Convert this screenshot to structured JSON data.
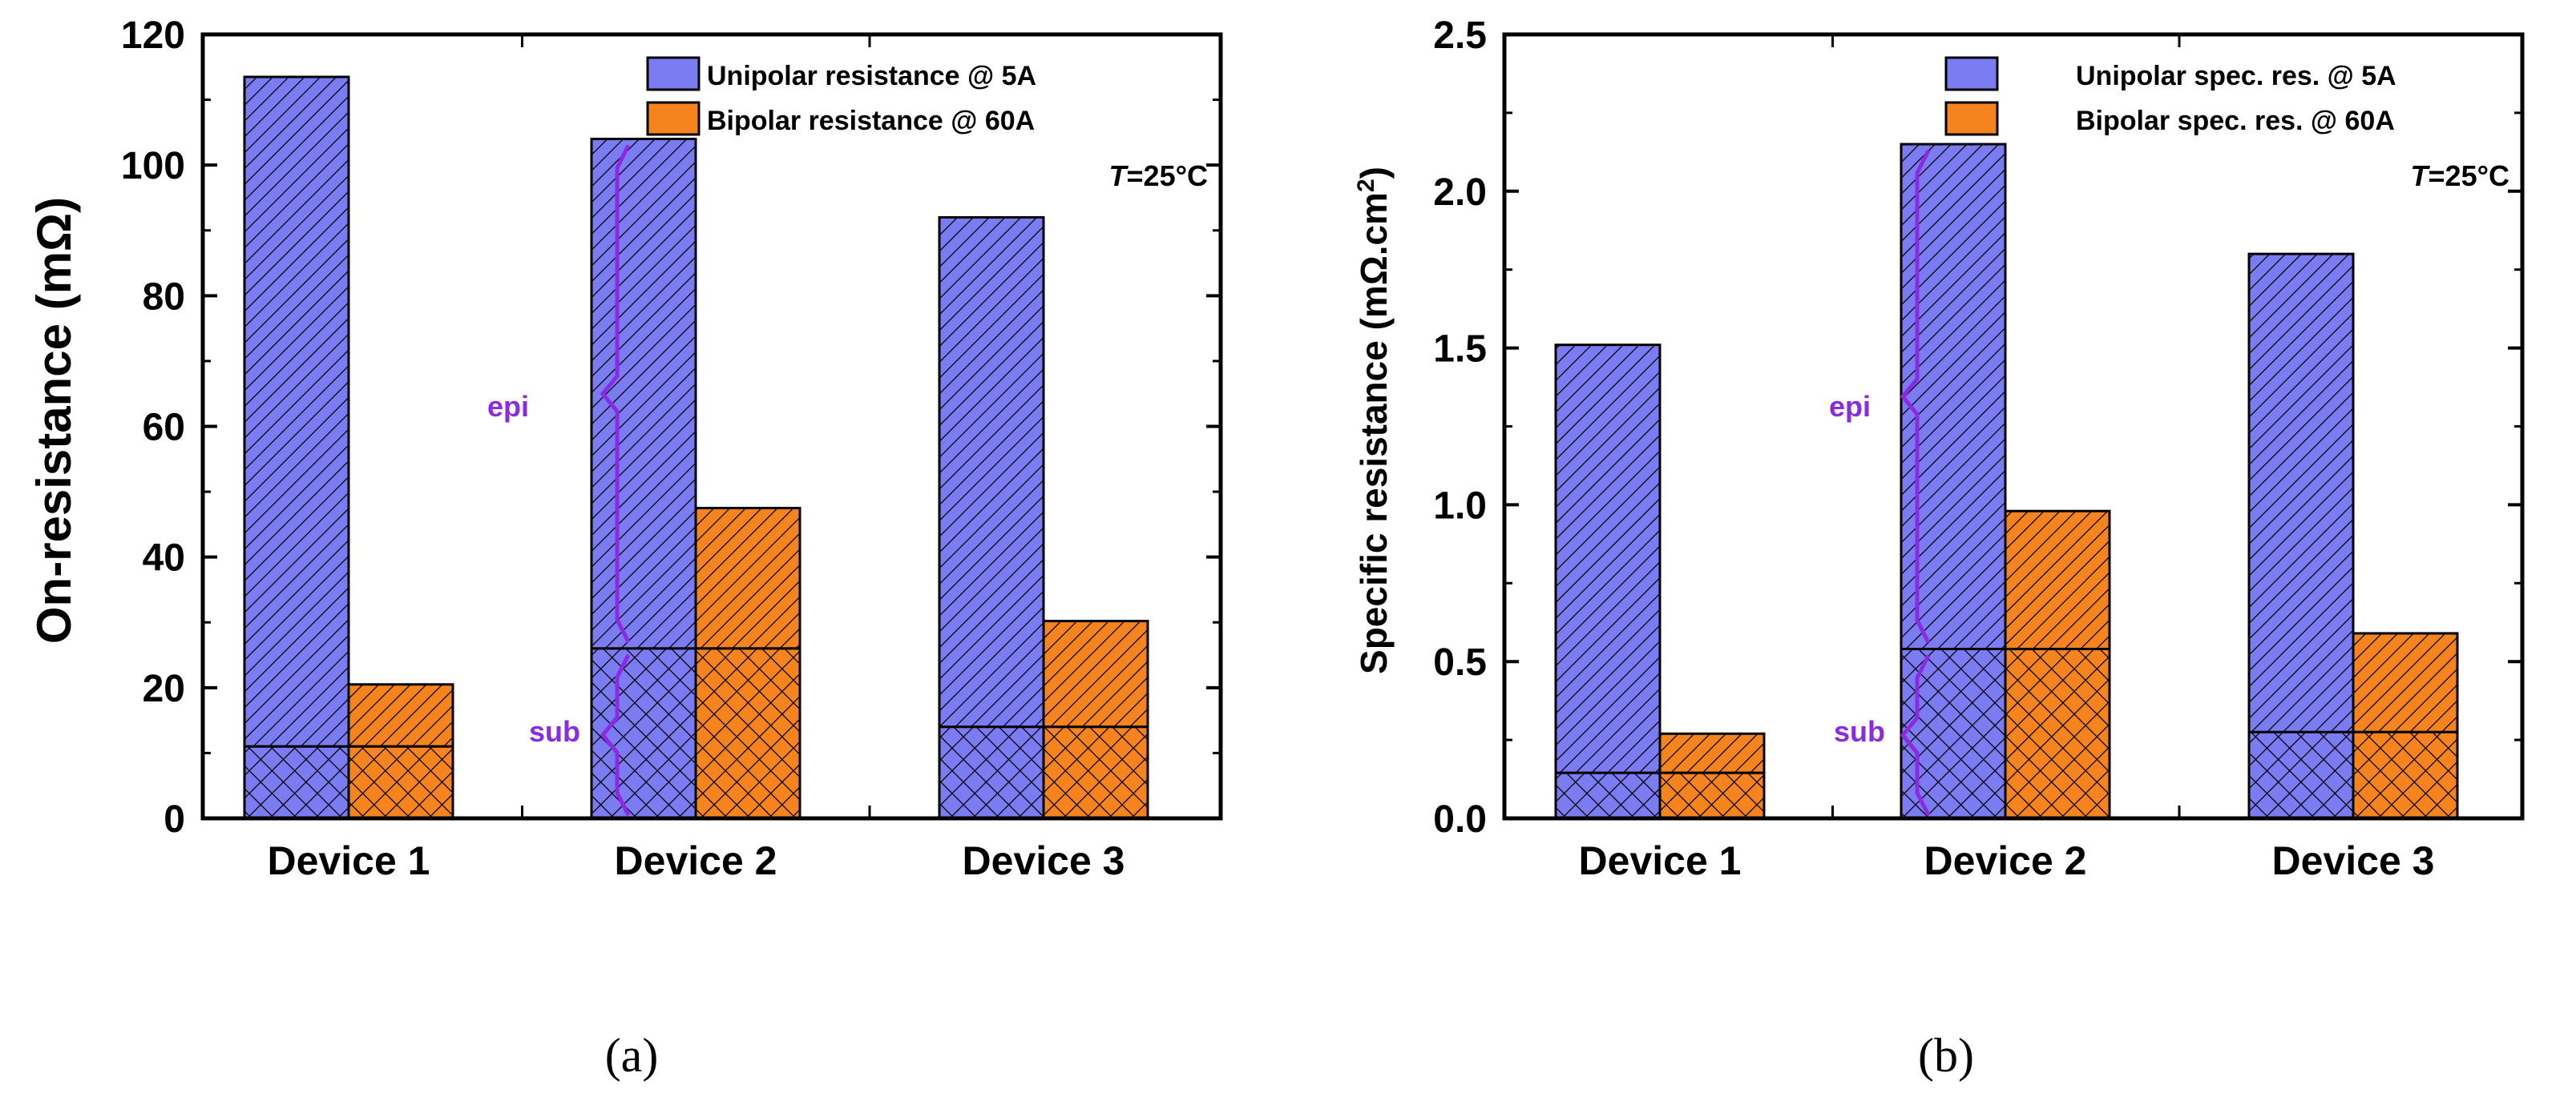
{
  "colors": {
    "unipolar": "#7c7cf2",
    "bipolar": "#f5841f",
    "annotation": "#8a2be2",
    "axis": "#000000"
  },
  "chart_data": [
    {
      "type": "bar",
      "panel_label": "(a)",
      "categories": [
        "Device 1",
        "Device 2",
        "Device 3"
      ],
      "ylabel": "On-resistance (mΩ)",
      "ylim": [
        0,
        120
      ],
      "yticks": [
        0,
        20,
        40,
        60,
        80,
        100,
        120
      ],
      "ytick_labels": [
        "0",
        "20",
        "40",
        "60",
        "80",
        "100",
        "120"
      ],
      "series": [
        {
          "name": "Unipolar resistance @ 5A",
          "values": [
            113.5,
            104,
            92
          ],
          "substrate": [
            11,
            26,
            14
          ]
        },
        {
          "name": "Bipolar resistance @ 60A",
          "values": [
            20.5,
            47.5,
            30.2
          ],
          "substrate": [
            11,
            26,
            14
          ]
        }
      ],
      "annotation": {
        "T_symbol": "T",
        "T_value": "=25°C"
      },
      "bracket_labels": {
        "epi": "epi",
        "sub": "sub"
      },
      "grid": false,
      "legend": "top-right"
    },
    {
      "type": "bar",
      "panel_label": "(b)",
      "categories": [
        "Device 1",
        "Device 2",
        "Device 3"
      ],
      "ylabel_main": "Specific resistance (mΩ.cm",
      "ylabel_sup": "2",
      "ylabel_close": ")",
      "ylim": [
        0,
        2.5
      ],
      "yticks": [
        0,
        0.5,
        1.0,
        1.5,
        2.0,
        2.5
      ],
      "ytick_labels": [
        "0.0",
        "0.5",
        "1.0",
        "1.5",
        "2.0",
        "2.5"
      ],
      "series": [
        {
          "name": "Unipolar spec. res. @ 5A",
          "values": [
            1.51,
            2.15,
            1.8
          ],
          "substrate": [
            0.145,
            0.54,
            0.275
          ]
        },
        {
          "name": "Bipolar spec. res. @ 60A",
          "values": [
            0.27,
            0.98,
            0.59
          ],
          "substrate": [
            0.145,
            0.54,
            0.275
          ]
        }
      ],
      "annotation": {
        "T_symbol": "T",
        "T_value": "=25°C"
      },
      "bracket_labels": {
        "epi": "epi",
        "sub": "sub"
      },
      "grid": false,
      "legend": "top-right"
    }
  ]
}
